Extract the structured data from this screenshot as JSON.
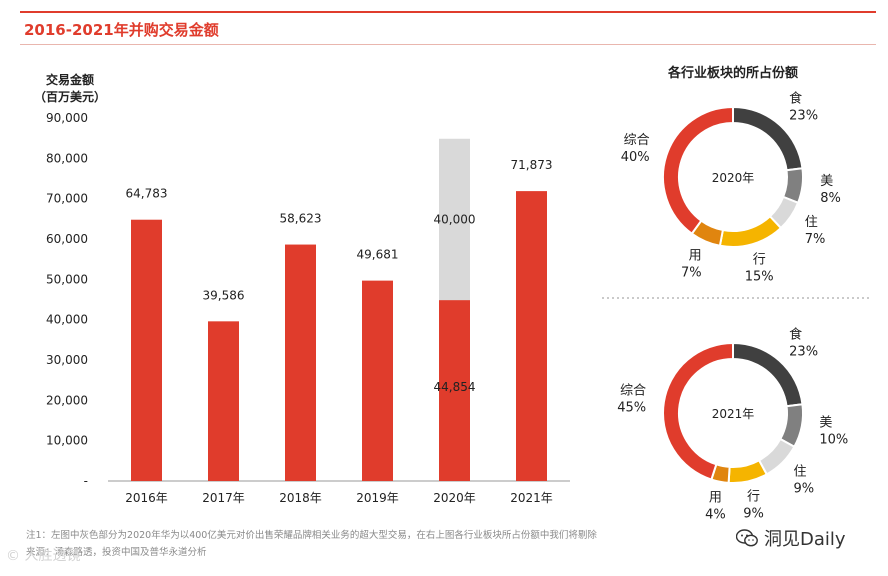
{
  "page_title": "2016-2021年并购交易金额",
  "footnote": "注1：左图中灰色部分为2020年华为以400亿美元对价出售荣耀品牌相关业务的超大型交易，在右上图各行业板块所占份额中我们将剔除",
  "source": "来源：汤森路透，投资中国及普华永道分析",
  "watermark_left": "© 人胜透镜",
  "watermark_right": "洞见Daily",
  "chart_data": [
    {
      "type": "bar",
      "ylabel_lines": [
        "交易金额",
        "（百万美元）"
      ],
      "categories": [
        "2016年",
        "2017年",
        "2018年",
        "2019年",
        "2020年",
        "2021年"
      ],
      "series": [
        {
          "values": [
            64783,
            39586,
            58623,
            49681,
            44854,
            71873
          ],
          "color": "#e03c2c"
        },
        {
          "values": [
            0,
            0,
            0,
            0,
            40000,
            0
          ],
          "color": "#d9d9d9"
        }
      ],
      "data_labels": [
        "64,783",
        "39,586",
        "58,623",
        "49,681",
        "44,854",
        "71,873"
      ],
      "stack_labels": [
        "",
        "",
        "",
        "",
        "40,000",
        ""
      ],
      "ylim": [
        0,
        90000
      ],
      "yticks": [
        0,
        10000,
        20000,
        30000,
        40000,
        50000,
        60000,
        70000,
        80000,
        90000
      ],
      "ytick_labels": [
        "-",
        "10,000",
        "20,000",
        "30,000",
        "40,000",
        "50,000",
        "60,000",
        "70,000",
        "80,000",
        "90,000"
      ],
      "grid": false
    },
    {
      "type": "pie",
      "title": "各行业板块的所占份额",
      "center_label": "2020年",
      "slices": [
        {
          "label": "食",
          "value": 23,
          "pct": "23%",
          "color": "#404040"
        },
        {
          "label": "美",
          "value": 8,
          "pct": "8%",
          "color": "#808080"
        },
        {
          "label": "住",
          "value": 7,
          "pct": "7%",
          "color": "#d9d9d9"
        },
        {
          "label": "行",
          "value": 15,
          "pct": "15%",
          "color": "#f5b400"
        },
        {
          "label": "用",
          "value": 7,
          "pct": "7%",
          "color": "#e0850f"
        },
        {
          "label": "综合",
          "value": 40,
          "pct": "40%",
          "color": "#e03c2c"
        }
      ]
    },
    {
      "type": "pie",
      "center_label": "2021年",
      "slices": [
        {
          "label": "食",
          "value": 23,
          "pct": "23%",
          "color": "#404040"
        },
        {
          "label": "美",
          "value": 10,
          "pct": "10%",
          "color": "#808080"
        },
        {
          "label": "住",
          "value": 9,
          "pct": "9%",
          "color": "#d9d9d9"
        },
        {
          "label": "行",
          "value": 9,
          "pct": "9%",
          "color": "#f5b400"
        },
        {
          "label": "用",
          "value": 4,
          "pct": "4%",
          "color": "#e0850f"
        },
        {
          "label": "综合",
          "value": 45,
          "pct": "45%",
          "color": "#e03c2c"
        }
      ]
    }
  ]
}
